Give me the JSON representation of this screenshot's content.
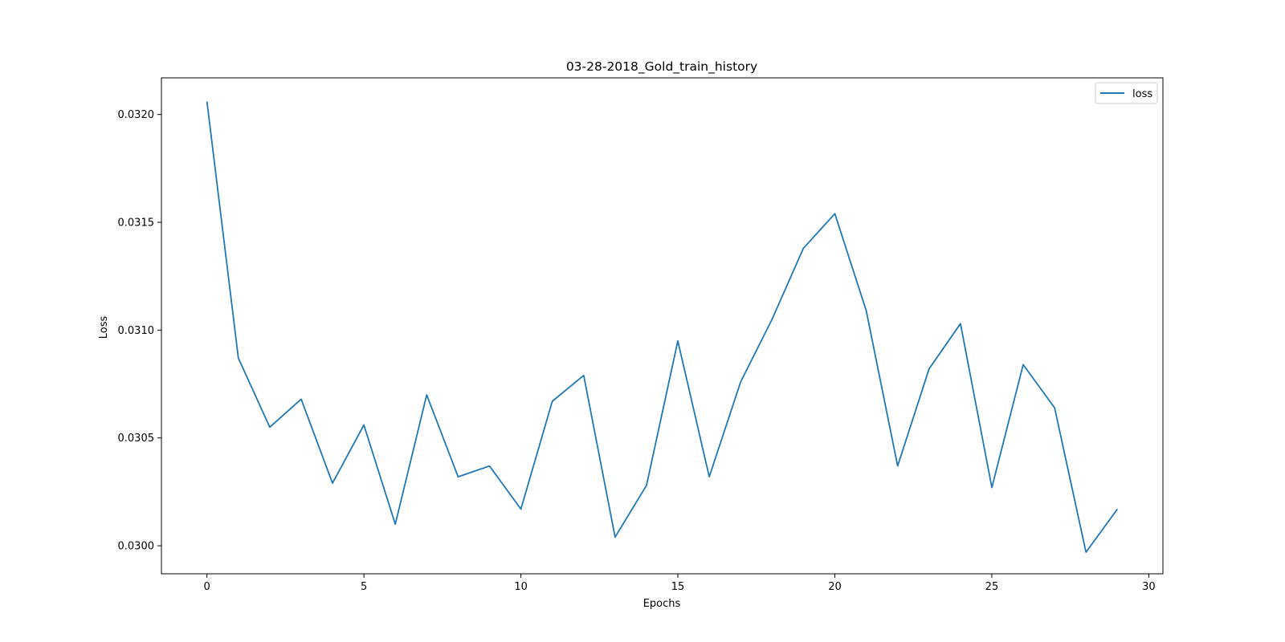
{
  "chart_data": {
    "type": "line",
    "title": "03-28-2018_Gold_train_history",
    "xlabel": "Epochs",
    "ylabel": "Loss",
    "xlim": [
      -1.45,
      30.45
    ],
    "ylim": [
      0.02987,
      0.03217
    ],
    "xticks": [
      0,
      5,
      10,
      15,
      20,
      25,
      30
    ],
    "yticks": [
      0.03,
      0.0305,
      0.031,
      0.0315,
      0.032
    ],
    "ytick_labels": [
      "0.0300",
      "0.0305",
      "0.0310",
      "0.0315",
      "0.0320"
    ],
    "grid": false,
    "legend": {
      "position": "top-right"
    },
    "series": [
      {
        "name": "loss",
        "color": "#1f77b4",
        "x": [
          0,
          1,
          2,
          3,
          4,
          5,
          6,
          7,
          8,
          9,
          10,
          11,
          12,
          13,
          14,
          15,
          16,
          17,
          18,
          19,
          20,
          21,
          22,
          23,
          24,
          25,
          26,
          27,
          28,
          29
        ],
        "values": [
          0.03206,
          0.03087,
          0.03055,
          0.03068,
          0.03029,
          0.03056,
          0.0301,
          0.0307,
          0.03032,
          0.03037,
          0.03017,
          0.03067,
          0.03079,
          0.03004,
          0.03028,
          0.03095,
          0.03032,
          0.03076,
          0.03105,
          0.03138,
          0.03154,
          0.03109,
          0.03037,
          0.03082,
          0.03103,
          0.03027,
          0.03084,
          0.03064,
          0.02997,
          0.03017
        ]
      }
    ]
  }
}
